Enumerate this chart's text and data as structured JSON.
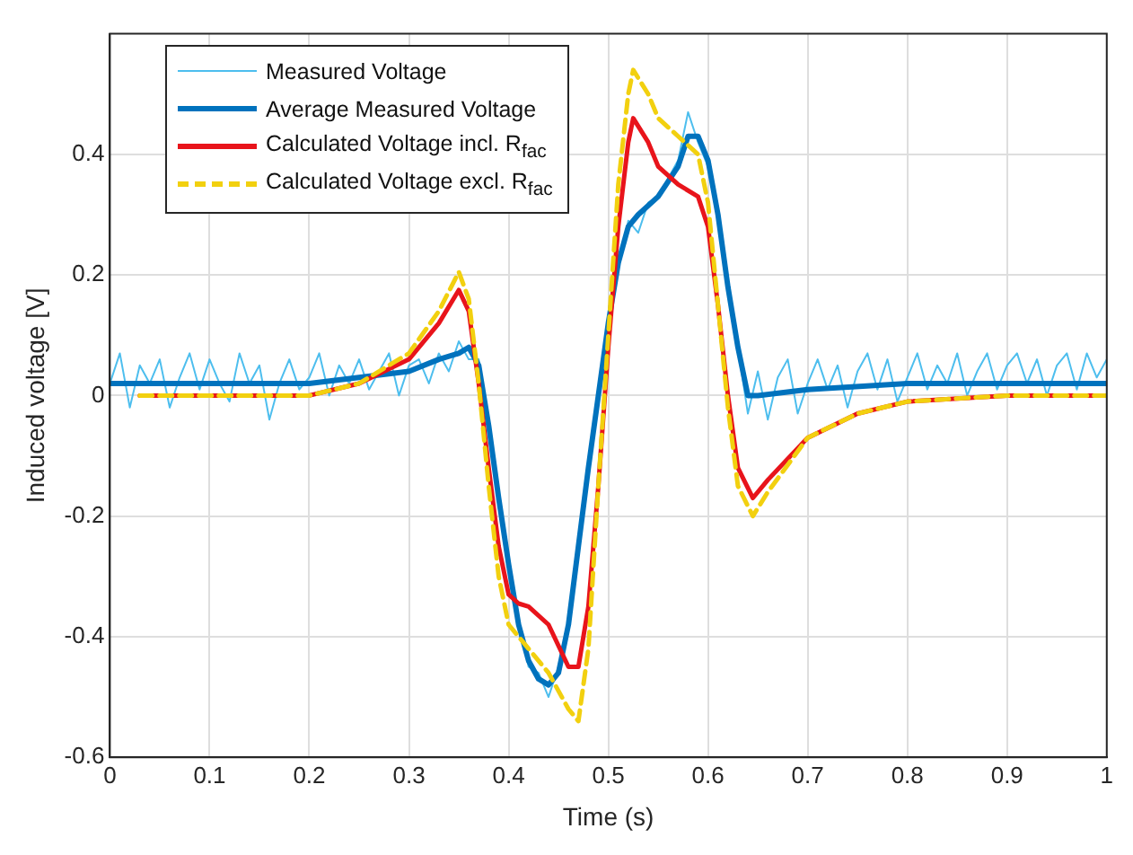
{
  "chart_data": {
    "type": "line",
    "xlabel": "Time (s)",
    "ylabel": "Induced voltage [V]",
    "xlim": [
      0,
      1
    ],
    "xticks": [
      0,
      0.1,
      0.2,
      0.3,
      0.4,
      0.5,
      0.6,
      0.7,
      0.8,
      0.9,
      1
    ],
    "ylim": [
      -0.6,
      0.6
    ],
    "yticks": [
      -0.6,
      -0.4,
      -0.2,
      0,
      0.2,
      0.4
    ],
    "grid": true,
    "legend": "top left",
    "marker": "none",
    "series": [
      {
        "name": "Measured Voltage",
        "color": "#4dbeee",
        "line_style": "solid",
        "x": [
          0,
          0.01,
          0.02,
          0.03,
          0.04,
          0.05,
          0.06,
          0.07,
          0.08,
          0.09,
          0.1,
          0.11,
          0.12,
          0.13,
          0.14,
          0.15,
          0.16,
          0.17,
          0.18,
          0.19,
          0.2,
          0.21,
          0.22,
          0.23,
          0.24,
          0.25,
          0.26,
          0.27,
          0.28,
          0.29,
          0.3,
          0.31,
          0.32,
          0.33,
          0.34,
          0.35,
          0.36,
          0.37,
          0.38,
          0.39,
          0.4,
          0.41,
          0.42,
          0.43,
          0.44,
          0.45,
          0.46,
          0.47,
          0.48,
          0.49,
          0.5,
          0.51,
          0.52,
          0.53,
          0.54,
          0.55,
          0.56,
          0.57,
          0.58,
          0.59,
          0.6,
          0.61,
          0.62,
          0.63,
          0.64,
          0.65,
          0.66,
          0.67,
          0.68,
          0.69,
          0.7,
          0.71,
          0.72,
          0.73,
          0.74,
          0.75,
          0.76,
          0.77,
          0.78,
          0.79,
          0.8,
          0.81,
          0.82,
          0.83,
          0.84,
          0.85,
          0.86,
          0.87,
          0.88,
          0.89,
          0.9,
          0.91,
          0.92,
          0.93,
          0.94,
          0.95,
          0.96,
          0.97,
          0.98,
          0.99,
          1
        ],
        "values": [
          0.02,
          0.07,
          -0.02,
          0.05,
          0.02,
          0.06,
          -0.02,
          0.03,
          0.07,
          0.01,
          0.06,
          0.02,
          -0.01,
          0.07,
          0.02,
          0.05,
          -0.04,
          0.02,
          0.06,
          0.01,
          0.03,
          0.07,
          0.0,
          0.05,
          0.02,
          0.06,
          0.01,
          0.04,
          0.07,
          0.0,
          0.05,
          0.06,
          0.02,
          0.07,
          0.04,
          0.09,
          0.06,
          0.06,
          -0.06,
          -0.17,
          -0.29,
          -0.37,
          -0.45,
          -0.46,
          -0.5,
          -0.45,
          -0.38,
          -0.24,
          -0.12,
          0.0,
          0.13,
          0.21,
          0.29,
          0.27,
          0.32,
          0.33,
          0.36,
          0.39,
          0.47,
          0.42,
          0.38,
          0.31,
          0.17,
          0.08,
          -0.03,
          0.04,
          -0.04,
          0.03,
          0.06,
          -0.03,
          0.02,
          0.06,
          0.01,
          0.05,
          -0.02,
          0.04,
          0.07,
          0.01,
          0.06,
          -0.01,
          0.03,
          0.07,
          0.01,
          0.05,
          0.02,
          0.07,
          0.0,
          0.04,
          0.07,
          0.01,
          0.05,
          0.07,
          0.02,
          0.06,
          0.0,
          0.05,
          0.07,
          0.01,
          0.07,
          0.03,
          0.06
        ]
      },
      {
        "name": "Average Measured Voltage",
        "color": "#0072bd",
        "line_style": "solid",
        "x": [
          0,
          0.1,
          0.2,
          0.25,
          0.3,
          0.33,
          0.35,
          0.36,
          0.37,
          0.38,
          0.39,
          0.4,
          0.41,
          0.42,
          0.43,
          0.44,
          0.45,
          0.46,
          0.47,
          0.48,
          0.49,
          0.5,
          0.51,
          0.52,
          0.53,
          0.55,
          0.57,
          0.58,
          0.59,
          0.6,
          0.61,
          0.62,
          0.63,
          0.64,
          0.65,
          0.7,
          0.8,
          0.9,
          1
        ],
        "values": [
          0.02,
          0.02,
          0.02,
          0.03,
          0.04,
          0.06,
          0.07,
          0.08,
          0.05,
          -0.05,
          -0.17,
          -0.28,
          -0.38,
          -0.44,
          -0.47,
          -0.48,
          -0.46,
          -0.38,
          -0.25,
          -0.12,
          0.0,
          0.12,
          0.22,
          0.28,
          0.3,
          0.33,
          0.38,
          0.43,
          0.43,
          0.39,
          0.3,
          0.18,
          0.08,
          0.0,
          0.0,
          0.01,
          0.02,
          0.02,
          0.02
        ]
      },
      {
        "name": "Calculated Voltage incl. R$_{fac}$",
        "color": "#e8141b",
        "line_style": "solid",
        "x": [
          0.03,
          0.1,
          0.2,
          0.25,
          0.3,
          0.33,
          0.35,
          0.36,
          0.37,
          0.38,
          0.39,
          0.4,
          0.41,
          0.42,
          0.44,
          0.46,
          0.47,
          0.48,
          0.49,
          0.5,
          0.51,
          0.52,
          0.525,
          0.54,
          0.55,
          0.57,
          0.59,
          0.6,
          0.61,
          0.62,
          0.63,
          0.645,
          0.66,
          0.7,
          0.75,
          0.8,
          0.9,
          1
        ],
        "values": [
          0,
          0,
          0,
          0.02,
          0.06,
          0.12,
          0.175,
          0.14,
          0.02,
          -0.12,
          -0.25,
          -0.33,
          -0.345,
          -0.35,
          -0.38,
          -0.45,
          -0.45,
          -0.35,
          -0.15,
          0.08,
          0.28,
          0.42,
          0.46,
          0.42,
          0.38,
          0.35,
          0.33,
          0.28,
          0.15,
          0.0,
          -0.12,
          -0.17,
          -0.14,
          -0.07,
          -0.03,
          -0.01,
          0,
          0
        ]
      },
      {
        "name": "Calculated Voltage excl. R$_{fac}$",
        "color": "#f2d00f",
        "line_style": "dashed",
        "x": [
          0.03,
          0.1,
          0.2,
          0.25,
          0.3,
          0.33,
          0.35,
          0.36,
          0.37,
          0.38,
          0.39,
          0.4,
          0.42,
          0.44,
          0.46,
          0.47,
          0.48,
          0.49,
          0.5,
          0.51,
          0.52,
          0.525,
          0.54,
          0.55,
          0.57,
          0.59,
          0.6,
          0.61,
          0.62,
          0.63,
          0.645,
          0.66,
          0.7,
          0.75,
          0.8,
          0.9,
          1
        ],
        "values": [
          0,
          0,
          0,
          0.02,
          0.07,
          0.14,
          0.205,
          0.16,
          0.02,
          -0.15,
          -0.3,
          -0.38,
          -0.42,
          -0.46,
          -0.52,
          -0.54,
          -0.42,
          -0.15,
          0.1,
          0.35,
          0.5,
          0.54,
          0.5,
          0.46,
          0.43,
          0.4,
          0.32,
          0.15,
          -0.02,
          -0.15,
          -0.2,
          -0.16,
          -0.07,
          -0.03,
          -0.01,
          0,
          0
        ]
      }
    ]
  }
}
